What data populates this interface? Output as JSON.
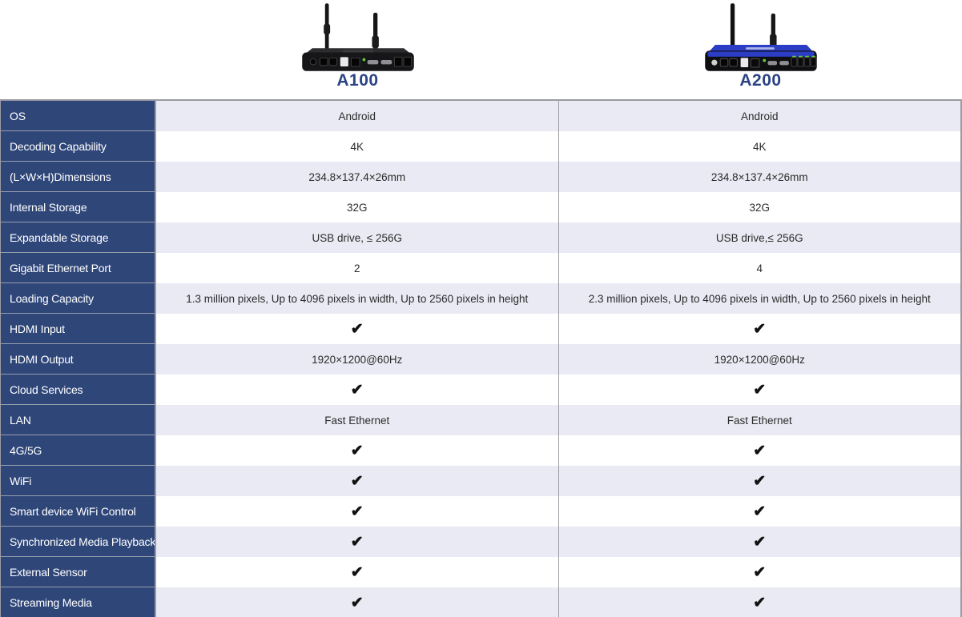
{
  "colors": {
    "label_column_bg": "#2F4679",
    "label_text": "#FFFFFF",
    "row_alt_bg": "#EAEAF4",
    "row_bg": "#FFFFFF",
    "table_border": "#9A9AA2",
    "product_label": "#2B4384",
    "check": "#111111",
    "a200_chassis_blue": "#2B3DC4"
  },
  "header": {
    "products": [
      {
        "label": "A100",
        "image": "a100-device"
      },
      {
        "label": "A200",
        "image": "a200-device"
      }
    ]
  },
  "table": {
    "check_glyph": "✔",
    "rows": [
      {
        "label": "OS",
        "cells": [
          {
            "type": "text",
            "text": "Android"
          },
          {
            "type": "text",
            "text": "Android"
          }
        ]
      },
      {
        "label": "Decoding Capability",
        "cells": [
          {
            "type": "text",
            "text": "4K"
          },
          {
            "type": "text",
            "text": "4K"
          }
        ]
      },
      {
        "label": "(L×W×H)Dimensions",
        "cells": [
          {
            "type": "text",
            "text": "234.8×137.4×26mm"
          },
          {
            "type": "text",
            "text": "234.8×137.4×26mm"
          }
        ]
      },
      {
        "label": "Internal Storage",
        "cells": [
          {
            "type": "text",
            "text": "32G"
          },
          {
            "type": "text",
            "text": "32G"
          }
        ]
      },
      {
        "label": "Expandable Storage",
        "cells": [
          {
            "type": "text",
            "text": "USB drive, ≤ 256G"
          },
          {
            "type": "text",
            "text": "USB drive,≤ 256G"
          }
        ]
      },
      {
        "label": "Gigabit Ethernet Port",
        "cells": [
          {
            "type": "text",
            "text": "2"
          },
          {
            "type": "text",
            "text": "4"
          }
        ]
      },
      {
        "label": "Loading Capacity",
        "cells": [
          {
            "type": "text",
            "text": "1.3 million pixels, Up to 4096 pixels in width, Up to 2560 pixels in height"
          },
          {
            "type": "text",
            "text": "2.3 million pixels, Up to 4096 pixels in width, Up to 2560 pixels in height"
          }
        ]
      },
      {
        "label": "HDMI Input",
        "cells": [
          {
            "type": "check"
          },
          {
            "type": "check"
          }
        ]
      },
      {
        "label": "HDMI Output",
        "cells": [
          {
            "type": "text",
            "text": "1920×1200@60Hz"
          },
          {
            "type": "text",
            "text": "1920×1200@60Hz"
          }
        ]
      },
      {
        "label": "Cloud Services",
        "cells": [
          {
            "type": "check"
          },
          {
            "type": "check"
          }
        ]
      },
      {
        "label": "LAN",
        "cells": [
          {
            "type": "text",
            "text": "Fast Ethernet"
          },
          {
            "type": "text",
            "text": "Fast Ethernet"
          }
        ]
      },
      {
        "label": "4G/5G",
        "cells": [
          {
            "type": "check"
          },
          {
            "type": "check"
          }
        ]
      },
      {
        "label": "WiFi",
        "cells": [
          {
            "type": "check"
          },
          {
            "type": "check"
          }
        ]
      },
      {
        "label": "Smart device WiFi Control",
        "cells": [
          {
            "type": "check"
          },
          {
            "type": "check"
          }
        ]
      },
      {
        "label": "Synchronized Media Playback",
        "cells": [
          {
            "type": "check"
          },
          {
            "type": "check"
          }
        ]
      },
      {
        "label": "External Sensor",
        "cells": [
          {
            "type": "check"
          },
          {
            "type": "check"
          }
        ]
      },
      {
        "label": "Streaming Media",
        "cells": [
          {
            "type": "check"
          },
          {
            "type": "check"
          }
        ]
      }
    ]
  }
}
